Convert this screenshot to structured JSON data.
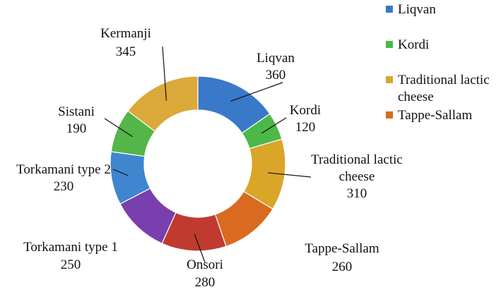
{
  "chart_data": {
    "type": "pie",
    "variant": "donut",
    "title": "",
    "categories": [
      "Liqvan",
      "Kordi",
      "Traditional lactic cheese",
      "Tappe-Sallam",
      "Onsori",
      "Torkamani type 1",
      "Torkamani type 2",
      "Sistani",
      "Kermanji"
    ],
    "values": [
      360,
      120,
      310,
      260,
      280,
      250,
      230,
      190,
      345
    ],
    "data_labels": [
      {
        "name_lines": [
          "Liqvan"
        ],
        "value": "360"
      },
      {
        "name_lines": [
          "Kordi"
        ],
        "value": "120"
      },
      {
        "name_lines": [
          "Traditional lactic",
          "cheese"
        ],
        "value": "310"
      },
      {
        "name_lines": [
          "Tappe-Sallam"
        ],
        "value": "260"
      },
      {
        "name_lines": [
          "Onsori"
        ],
        "value": "280"
      },
      {
        "name_lines": [
          "Torkamani type 1"
        ],
        "value": "250"
      },
      {
        "name_lines": [
          "Torkamani type 2"
        ],
        "value": "230"
      },
      {
        "name_lines": [
          "Sistani"
        ],
        "value": "190"
      },
      {
        "name_lines": [
          "Kermanji"
        ],
        "value": "345"
      }
    ],
    "colors": [
      "#3a78c9",
      "#4cb848",
      "#d9a62a",
      "#da6a1f",
      "#c03a30",
      "#7a3fae",
      "#3f86cf",
      "#54b548",
      "#dba93a"
    ],
    "legend": {
      "position": "right",
      "entries": [
        {
          "label_lines": [
            "Liqvan"
          ],
          "color": "#3a78c9"
        },
        {
          "label_lines": [
            "Kordi"
          ],
          "color": "#4cb848"
        },
        {
          "label_lines": [
            "Traditional lactic",
            "cheese"
          ],
          "color": "#d9a62a"
        },
        {
          "label_lines": [
            "Tappe-Sallam"
          ],
          "color": "#da6a1f"
        }
      ]
    }
  }
}
